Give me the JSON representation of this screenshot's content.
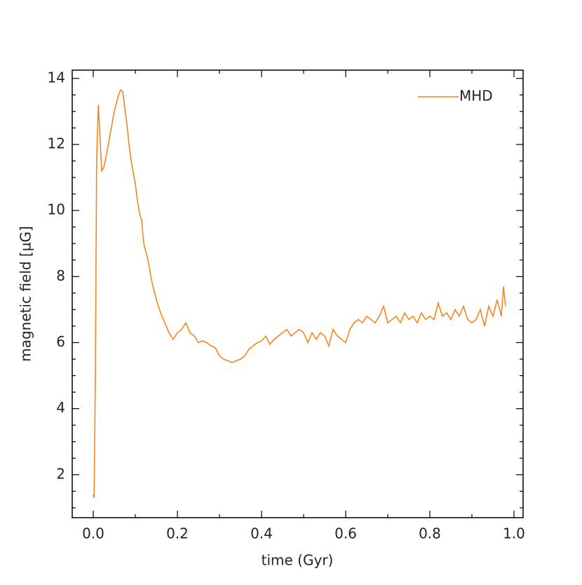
{
  "chart_data": {
    "type": "line",
    "xlabel": "time (Gyr)",
    "ylabel": "magnetic field [µG]",
    "xlim": [
      -0.05,
      1.0217
    ],
    "ylim": [
      0.7,
      14.25
    ],
    "xticks": [
      {
        "value": 0,
        "label": "0.0"
      },
      0.2,
      0.4,
      0.6,
      0.8,
      {
        "value": 1,
        "label": "1.0"
      }
    ],
    "yticks": [
      2,
      4,
      6,
      8,
      10,
      12,
      14
    ],
    "xticks_minor": [
      0.1,
      0.3,
      0.5,
      0.7,
      0.9
    ],
    "yticks_minor": [
      1,
      1.5,
      2.5,
      3,
      3.5,
      4.5,
      5,
      5.5,
      6.5,
      7,
      7.5,
      8.5,
      9,
      9.5,
      10.5,
      11,
      11.5,
      12.5,
      13,
      13.5
    ],
    "legend": "upper right",
    "x": [
      0,
      0.002,
      0.005,
      0.008,
      0.012,
      0.015,
      0.02,
      0.025,
      0.03,
      0.04,
      0.05,
      0.06,
      0.065,
      0.07,
      0.075,
      0.08,
      0.085,
      0.09,
      0.1,
      0.105,
      0.11,
      0.115,
      0.12,
      0.13,
      0.14,
      0.15,
      0.16,
      0.17,
      0.18,
      0.19,
      0.2,
      0.21,
      0.22,
      0.23,
      0.24,
      0.25,
      0.26,
      0.27,
      0.28,
      0.29,
      0.3,
      0.31,
      0.32,
      0.33,
      0.34,
      0.35,
      0.36,
      0.37,
      0.38,
      0.39,
      0.4,
      0.41,
      0.42,
      0.43,
      0.44,
      0.45,
      0.46,
      0.47,
      0.48,
      0.49,
      0.5,
      0.51,
      0.52,
      0.53,
      0.54,
      0.55,
      0.56,
      0.57,
      0.58,
      0.59,
      0.6,
      0.61,
      0.62,
      0.63,
      0.64,
      0.65,
      0.66,
      0.67,
      0.68,
      0.69,
      0.7,
      0.71,
      0.72,
      0.73,
      0.74,
      0.75,
      0.76,
      0.77,
      0.78,
      0.79,
      0.8,
      0.81,
      0.82,
      0.83,
      0.84,
      0.85,
      0.86,
      0.87,
      0.88,
      0.89,
      0.9,
      0.91,
      0.92,
      0.93,
      0.94,
      0.95,
      0.96,
      0.97,
      0.975,
      0.98
    ],
    "series": [
      {
        "name": "MHD",
        "color": "#f5861f",
        "values": [
          1.4,
          1.3,
          5,
          11.5,
          13.2,
          12.5,
          11.2,
          11.3,
          11.6,
          12.3,
          13.0,
          13.5,
          13.65,
          13.6,
          13.1,
          12.6,
          12.0,
          11.5,
          10.8,
          10.3,
          9.9,
          9.7,
          9.0,
          8.5,
          7.8,
          7.3,
          6.9,
          6.6,
          6.3,
          6.1,
          6.3,
          6.4,
          6.6,
          6.3,
          6.2,
          6.0,
          6.05,
          6.0,
          5.9,
          5.85,
          5.6,
          5.5,
          5.45,
          5.4,
          5.45,
          5.5,
          5.6,
          5.8,
          5.9,
          6.0,
          6.05,
          6.2,
          5.95,
          6.1,
          6.2,
          6.3,
          6.4,
          6.2,
          6.3,
          6.4,
          6.3,
          6.0,
          6.3,
          6.1,
          6.3,
          6.2,
          5.9,
          6.4,
          6.2,
          6.1,
          6.0,
          6.4,
          6.6,
          6.7,
          6.6,
          6.8,
          6.7,
          6.6,
          6.8,
          7.1,
          6.6,
          6.7,
          6.8,
          6.6,
          6.9,
          6.7,
          6.8,
          6.6,
          6.9,
          6.7,
          6.8,
          6.7,
          7.2,
          6.8,
          6.9,
          6.7,
          7.0,
          6.8,
          7.1,
          6.7,
          6.6,
          6.7,
          7.0,
          6.5,
          7.1,
          6.8,
          7.3,
          6.8,
          7.7,
          7.1
        ]
      }
    ]
  }
}
